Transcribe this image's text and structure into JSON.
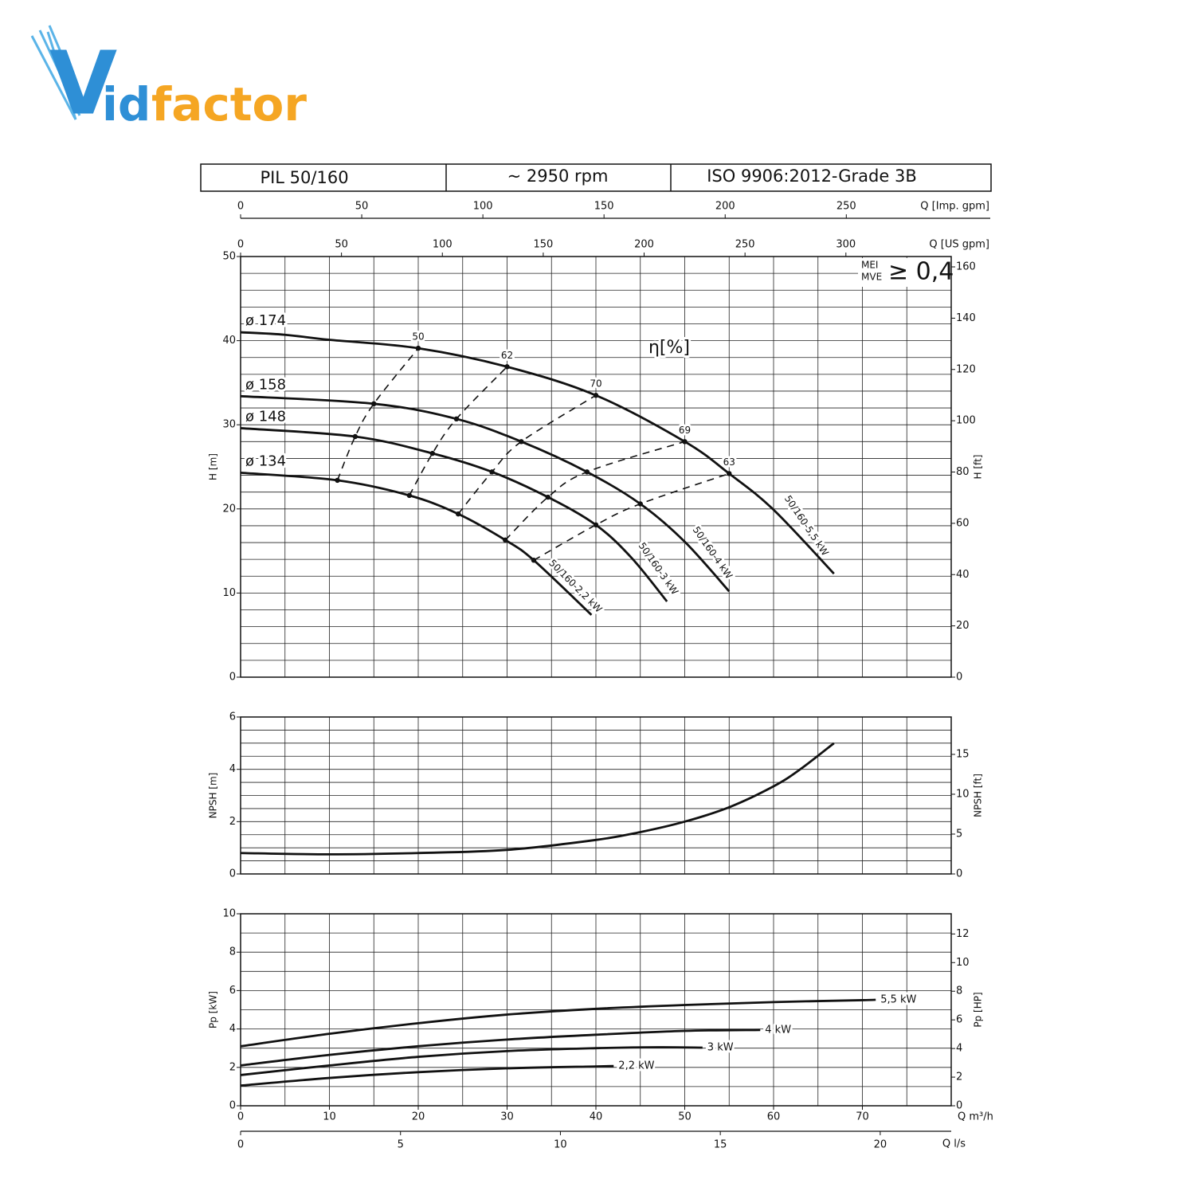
{
  "logo": [
    "V",
    "id",
    "factor"
  ],
  "header": {
    "model": "PIL 50/160",
    "speed": "~ 2950 rpm",
    "standard": "ISO 9906:2012-Grade 3B"
  },
  "chart_data": [
    {
      "type": "line",
      "ylabel": "H [m]",
      "y2label": "H [ft]",
      "xlim": [
        0,
        80
      ],
      "ylim": [
        0,
        50
      ],
      "yticks": [
        0,
        10,
        20,
        30,
        40,
        50
      ],
      "y2lim": [
        0,
        164.04
      ],
      "y2ticks": [
        0,
        20,
        40,
        60,
        80,
        100,
        120,
        140,
        160
      ],
      "xgrid": [
        0,
        5,
        10,
        15,
        20,
        25,
        30,
        35,
        40,
        45,
        50,
        55,
        60,
        65,
        70,
        75,
        80
      ],
      "ygrid": [
        0,
        2,
        4,
        6,
        8,
        10,
        12,
        14,
        16,
        18,
        20,
        22,
        24,
        26,
        28,
        30,
        32,
        34,
        36,
        38,
        40,
        42,
        44,
        46,
        48,
        50
      ],
      "top_axes": [
        {
          "label": "Q [Imp. gpm]",
          "xlim": [
            0,
            293.3
          ],
          "xticks": [
            0,
            50,
            100,
            150,
            200,
            250
          ]
        },
        {
          "label": "Q [US gpm]",
          "xlim": [
            0,
            352.2
          ],
          "xticks": [
            0,
            50,
            100,
            150,
            200,
            250,
            300
          ]
        }
      ],
      "series": [
        {
          "name": "ø 174",
          "color": "#111111",
          "x": [
            0,
            5,
            10,
            20,
            30,
            40,
            50,
            55,
            60,
            66.8
          ],
          "values": [
            41,
            40.7,
            40.1,
            39.1,
            36.9,
            33.5,
            28.0,
            24.2,
            19.9,
            12.3
          ]
        },
        {
          "name": "ø 158",
          "color": "#111111",
          "x": [
            0,
            15,
            24.3,
            31.6,
            39,
            45,
            50,
            55
          ],
          "values": [
            33.4,
            32.5,
            30.7,
            28.0,
            24.4,
            20.6,
            16.1,
            10.2
          ]
        },
        {
          "name": "ø 148",
          "color": "#111111",
          "x": [
            0,
            12.9,
            21.6,
            28.3,
            34.6,
            40,
            44,
            48
          ],
          "values": [
            29.6,
            28.6,
            26.6,
            24.4,
            21.4,
            18.1,
            14.2,
            9.0
          ]
        },
        {
          "name": "ø 134",
          "color": "#111111",
          "x": [
            0,
            10.9,
            19,
            24.5,
            29.8,
            33,
            39.5
          ],
          "values": [
            24.3,
            23.4,
            21.6,
            19.4,
            16.3,
            13.9,
            7.4
          ]
        },
        {
          "name": "50",
          "color": "#111111",
          "dash": true,
          "x": [
            10.9,
            12.9,
            15,
            20
          ],
          "values": [
            23.4,
            28.6,
            32.5,
            39.1
          ]
        },
        {
          "name": "62",
          "color": "#111111",
          "dash": true,
          "x": [
            19,
            21.6,
            24.3,
            30
          ],
          "values": [
            21.6,
            26.6,
            30.7,
            36.9
          ]
        },
        {
          "name": "70",
          "color": "#111111",
          "dash": true,
          "x": [
            24.5,
            28.3,
            31.6,
            40
          ],
          "values": [
            19.4,
            24.4,
            28.0,
            33.5
          ]
        },
        {
          "name": "69",
          "color": "#111111",
          "dash": true,
          "x": [
            29.8,
            34.6,
            39,
            50
          ],
          "values": [
            16.3,
            21.4,
            24.4,
            28.0
          ]
        },
        {
          "name": "63",
          "color": "#111111",
          "dash": true,
          "x": [
            33,
            40,
            45,
            55
          ],
          "values": [
            13.9,
            18.1,
            20.6,
            24.2
          ]
        }
      ],
      "efficiency_label": "η[%]",
      "annotations": [
        "50/160-5,5 kW",
        "50/160-4 kW",
        "50/160-3 kW",
        "50/160-2,2 kW"
      ],
      "mei": {
        "labels": [
          "MEI",
          "MVE"
        ],
        "value": "≥ 0,4"
      }
    },
    {
      "type": "line",
      "ylabel": "NPSH [m]",
      "y2label": "NPSH [ft]",
      "xlim": [
        0,
        80
      ],
      "ylim": [
        0,
        6
      ],
      "yticks": [
        0,
        2,
        4,
        6
      ],
      "y2lim": [
        0,
        19.69
      ],
      "y2ticks": [
        0,
        5,
        10,
        15
      ],
      "xgrid": [
        0,
        5,
        10,
        15,
        20,
        25,
        30,
        35,
        40,
        45,
        50,
        55,
        60,
        65,
        70,
        75,
        80
      ],
      "ygrid": [
        0,
        0.5,
        1,
        1.5,
        2,
        2.5,
        3,
        3.5,
        4,
        4.5,
        5,
        5.5,
        6
      ],
      "series": [
        {
          "color": "#111111",
          "x": [
            0,
            10,
            20,
            30,
            40,
            45,
            50,
            55,
            60,
            63,
            66.8
          ],
          "values": [
            0.8,
            0.75,
            0.8,
            0.92,
            1.3,
            1.6,
            2.0,
            2.55,
            3.35,
            4.0,
            5.0
          ]
        }
      ]
    },
    {
      "type": "line",
      "ylabel": "Pp [kW]",
      "y2label": "Pp [HP]",
      "xlabel": "Q m³/h",
      "xlim": [
        0,
        80
      ],
      "ylim": [
        0,
        10
      ],
      "yticks": [
        0,
        2,
        4,
        6,
        8,
        10
      ],
      "y2lim": [
        0,
        13.41
      ],
      "y2ticks": [
        0,
        2,
        4,
        6,
        8,
        10,
        12
      ],
      "xticks": [
        0,
        10,
        20,
        30,
        40,
        50,
        60,
        70
      ],
      "xgrid": [
        0,
        5,
        10,
        15,
        20,
        25,
        30,
        35,
        40,
        45,
        50,
        55,
        60,
        65,
        70,
        75,
        80
      ],
      "ygrid": [
        0,
        1,
        2,
        3,
        4,
        5,
        6,
        7,
        8,
        9,
        10
      ],
      "bottom_axes": [
        {
          "label": "Q l/s",
          "xlim": [
            0,
            22.22
          ],
          "xticks": [
            0,
            5,
            10,
            15,
            20
          ]
        }
      ],
      "series": [
        {
          "name": "5,5 kW",
          "color": "#111111",
          "x": [
            0,
            10,
            20,
            30,
            40,
            50,
            60,
            70,
            71.5
          ],
          "values": [
            3.1,
            3.75,
            4.3,
            4.75,
            5.05,
            5.25,
            5.4,
            5.5,
            5.52
          ]
        },
        {
          "name": "4 kW",
          "color": "#111111",
          "x": [
            0,
            10,
            20,
            30,
            40,
            50,
            58.5
          ],
          "values": [
            2.1,
            2.65,
            3.1,
            3.45,
            3.7,
            3.9,
            3.95
          ]
        },
        {
          "name": "3 kW",
          "color": "#111111",
          "x": [
            0,
            10,
            20,
            30,
            40,
            47,
            52
          ],
          "values": [
            1.6,
            2.1,
            2.55,
            2.85,
            3.0,
            3.05,
            3.03
          ]
        },
        {
          "name": "2,2 kW",
          "color": "#111111",
          "x": [
            0,
            10,
            20,
            30,
            40,
            42
          ],
          "values": [
            1.05,
            1.45,
            1.75,
            1.95,
            2.05,
            2.07
          ]
        }
      ]
    }
  ]
}
